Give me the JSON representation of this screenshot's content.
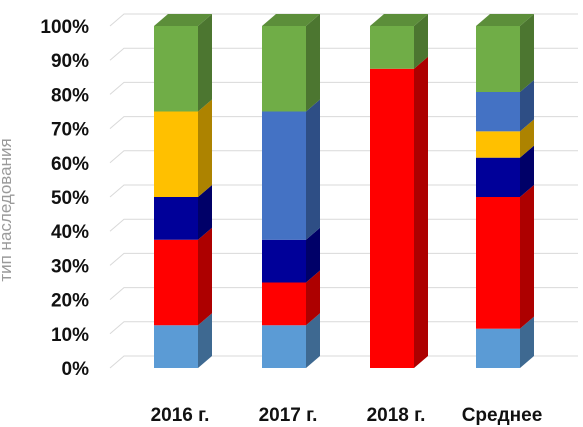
{
  "chart_data": {
    "type": "bar",
    "stacked": true,
    "stacking": "percent",
    "three_d": true,
    "title": "",
    "xlabel": "",
    "ylabel": "тип наследования",
    "ylim": [
      0,
      100
    ],
    "y_ticks": [
      "0%",
      "10%",
      "20%",
      "30%",
      "40%",
      "50%",
      "60%",
      "70%",
      "80%",
      "90%",
      "100%"
    ],
    "categories": [
      "2016 г.",
      "2017 г.",
      "2018 г.",
      "Среднее"
    ],
    "grid": true,
    "legend": "none",
    "series": [
      {
        "color": "#5b9bd5",
        "values": [
          12.5,
          12.5,
          0,
          11.5
        ]
      },
      {
        "color": "#ff0000",
        "values": [
          25,
          12.5,
          87.5,
          38.5
        ]
      },
      {
        "color": "#000099",
        "values": [
          12.5,
          12.5,
          0,
          11.5
        ]
      },
      {
        "color": "#ffc000",
        "values": [
          25,
          0,
          0,
          7.7
        ]
      },
      {
        "color": "#4472c4",
        "values": [
          0,
          37.5,
          0,
          11.5
        ]
      },
      {
        "color": "#70ad47",
        "values": [
          25,
          25,
          12.5,
          19.3
        ]
      }
    ]
  }
}
